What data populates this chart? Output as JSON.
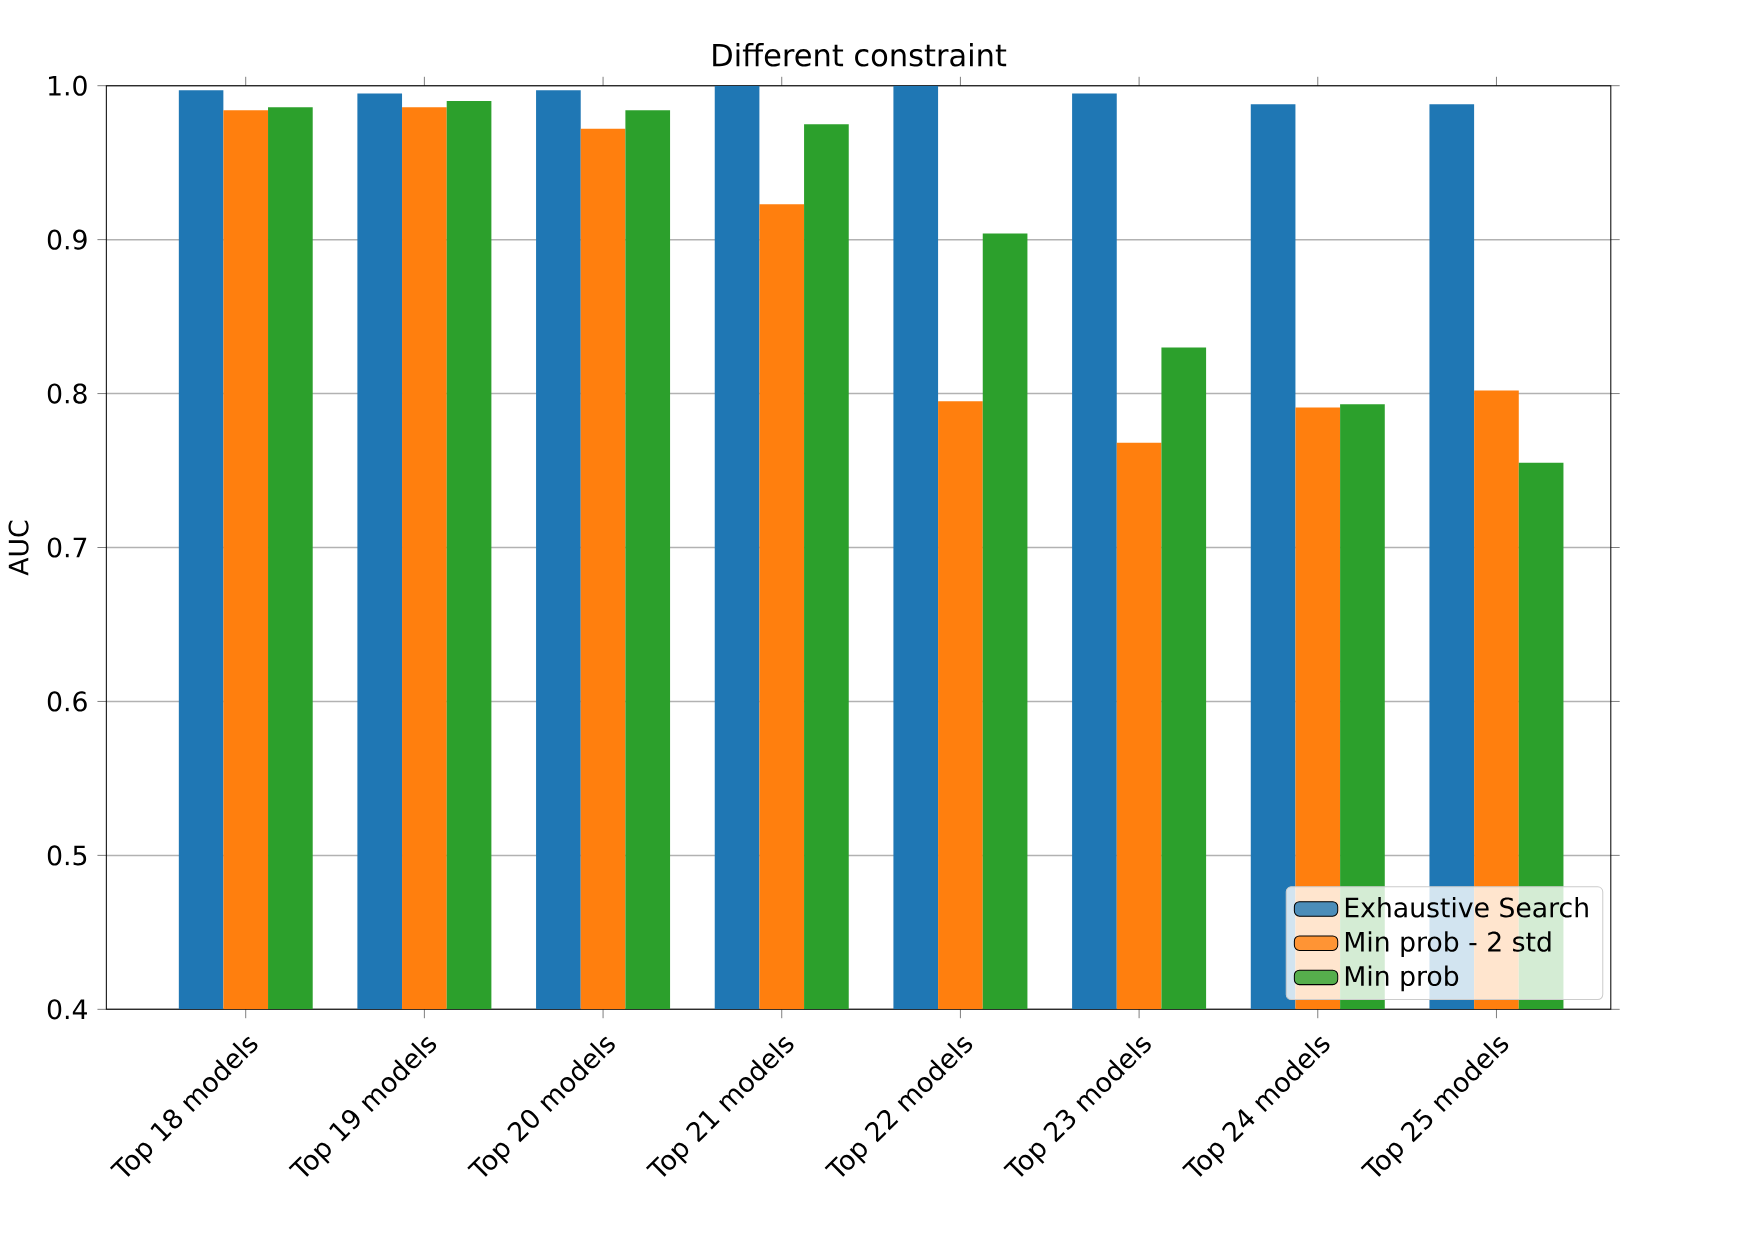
{
  "chart_data": {
    "type": "bar",
    "title": "Different constraint",
    "ylabel": "AUC",
    "categories": [
      "Top 18 models",
      "Top 19 models",
      "Top 20 models",
      "Top 21 models",
      "Top 22 models",
      "Top 23 models",
      "Top 24 models",
      "Top 25 models"
    ],
    "series": [
      {
        "name": "Exhaustive Search",
        "color": "#1f77b4",
        "values": [
          0.997,
          0.995,
          0.997,
          1.0,
          1.0,
          0.995,
          0.988,
          0.988
        ]
      },
      {
        "name": "Min prob - 2 std",
        "color": "#ff7f0e",
        "values": [
          0.984,
          0.986,
          0.972,
          0.923,
          0.795,
          0.768,
          0.791,
          0.802
        ]
      },
      {
        "name": "Min prob",
        "color": "#2ca02c",
        "values": [
          0.986,
          0.99,
          0.984,
          0.975,
          0.904,
          0.83,
          0.793,
          0.755
        ]
      }
    ],
    "ylim": [
      0.4,
      1.0
    ],
    "yticks": [
      {
        "value": 0.4,
        "label": "0.4"
      },
      {
        "value": 0.5,
        "label": "0.5"
      },
      {
        "value": 0.6,
        "label": "0.6"
      },
      {
        "value": 0.7,
        "label": "0.7"
      },
      {
        "value": 0.8,
        "label": "0.8"
      },
      {
        "value": 0.9,
        "label": "0.9"
      },
      {
        "value": 1.0,
        "label": "1.0"
      }
    ],
    "grid": "y",
    "legend": "bottom right"
  }
}
